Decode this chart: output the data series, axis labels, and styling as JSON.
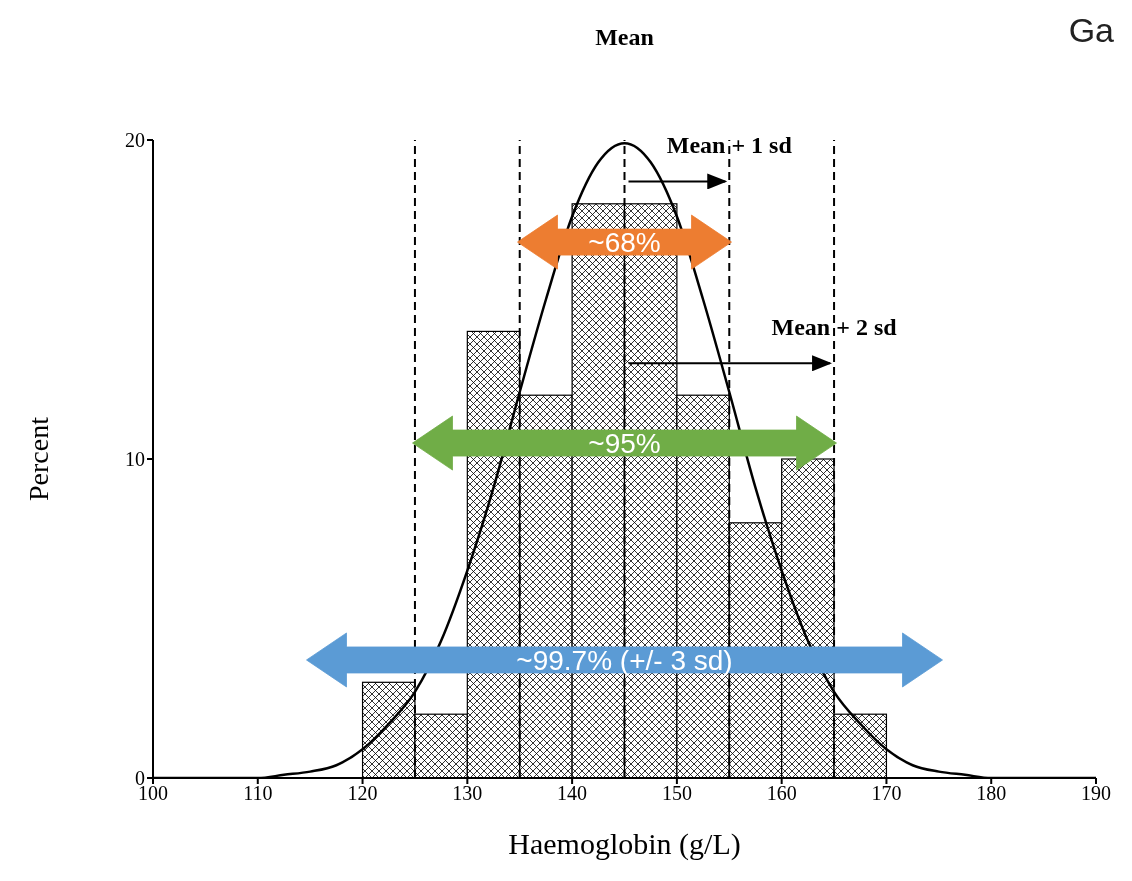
{
  "chart_data": {
    "type": "histogram",
    "xlabel": "Haemoglobin (g/L)",
    "ylabel": "Percent",
    "bins": [
      120,
      125,
      130,
      135,
      140,
      145,
      150,
      155,
      160,
      165,
      170
    ],
    "values": [
      3,
      2,
      14,
      12,
      18,
      18,
      12,
      8,
      10,
      2
    ],
    "color": "#000000",
    "series": [
      {
        "type": "line",
        "color": "#000000",
        "x": [
          100,
          105,
          110,
          112.5,
          115,
          117.5,
          120,
          122.5,
          125,
          127.5,
          130,
          132.5,
          135,
          137.5,
          140,
          142.5,
          145,
          147.5,
          150,
          152.5,
          155,
          157.5,
          160,
          162.5,
          165,
          167.5,
          170,
          172.5,
          175,
          177.5,
          180,
          185,
          190
        ],
        "values": [
          0,
          0,
          0,
          0.1,
          0.2,
          0.4,
          0.9,
          1.7,
          2.7,
          4.3,
          6.5,
          9.1,
          12.1,
          15.0,
          17.6,
          19.3,
          19.9,
          19.3,
          17.6,
          15.0,
          12.1,
          9.1,
          6.5,
          4.3,
          2.7,
          1.7,
          0.9,
          0.4,
          0.2,
          0.1,
          0,
          0,
          0
        ]
      }
    ],
    "xlim": [
      100,
      190
    ],
    "xticks": [
      100,
      110,
      120,
      130,
      140,
      150,
      160,
      170,
      180,
      190
    ],
    "ylim": [
      0,
      20
    ],
    "yticks": [
      0,
      10,
      20
    ],
    "grid": false,
    "line_style": "solid",
    "marker": "none",
    "ref_lines": [
      {
        "axis": "x",
        "value": 125,
        "line_style": "dashed"
      },
      {
        "axis": "x",
        "value": 135,
        "line_style": "dashed"
      },
      {
        "axis": "x",
        "value": 145,
        "label": "Mean",
        "line_style": "dashed"
      },
      {
        "axis": "x",
        "value": 155,
        "line_style": "dashed"
      },
      {
        "axis": "x",
        "value": 165,
        "line_style": "dashed"
      }
    ],
    "annotations": [
      {
        "text": "~68%",
        "x": 145,
        "y": 16.8
      },
      {
        "text": "~95%",
        "x": 145,
        "y": 10.5
      },
      {
        "text": "~99.7% (+/- 3 sd)",
        "x": 145,
        "y": 3.7
      },
      {
        "text": "Mean + 1 sd",
        "x": 155,
        "y": 18.7
      },
      {
        "text": "Mean + 2 sd",
        "x": 165,
        "y": 13
      },
      "Ga"
    ]
  }
}
